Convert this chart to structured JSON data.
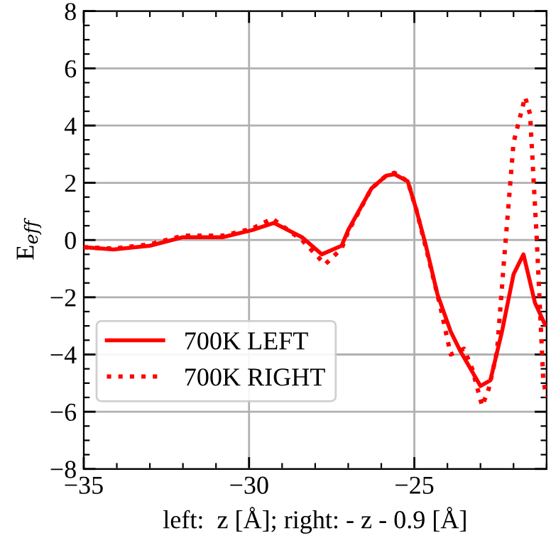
{
  "chart_data": {
    "type": "line",
    "xlabel": "left:  z [Å]; right: - z - 0.9 [Å]",
    "ylabel": "E$_{eff}$",
    "xlim": [
      -35,
      -21
    ],
    "xticks": [
      -35,
      -30,
      -25
    ],
    "ylim": [
      -8,
      8
    ],
    "yticks": [
      -8,
      -6,
      -4,
      -2,
      0,
      2,
      4,
      6,
      8
    ],
    "grid": true,
    "legend": "bottom left",
    "series": [
      {
        "name": "700K LEFT",
        "color": "#ff0000",
        "line_style": "solid",
        "x": [
          -35.0,
          -34.1,
          -33.0,
          -32.0,
          -30.8,
          -29.9,
          -29.25,
          -28.4,
          -27.8,
          -27.2,
          -27.0,
          -26.3,
          -25.85,
          -25.6,
          -25.2,
          -24.95,
          -24.65,
          -24.3,
          -23.9,
          -23.6,
          -23.0,
          -22.7,
          -22.35,
          -22.0,
          -21.7,
          -21.35,
          -21.05
        ],
        "values": [
          -0.25,
          -0.33,
          -0.2,
          0.1,
          0.1,
          0.35,
          0.6,
          0.1,
          -0.5,
          -0.2,
          0.35,
          1.8,
          2.25,
          2.3,
          2.05,
          1.1,
          -0.2,
          -1.9,
          -3.2,
          -3.9,
          -5.1,
          -4.9,
          -3.2,
          -1.2,
          -0.5,
          -2.2,
          -2.95
        ]
      },
      {
        "name": "700K RIGHT",
        "color": "#ff0000",
        "line_style": "dotted",
        "x": [
          -35.0,
          -34.1,
          -33.0,
          -32.0,
          -30.8,
          -29.9,
          -29.3,
          -28.4,
          -27.7,
          -27.2,
          -27.0,
          -26.3,
          -25.85,
          -25.6,
          -25.2,
          -24.95,
          -24.6,
          -24.2,
          -23.9,
          -23.5,
          -23.25,
          -22.95,
          -22.75,
          -22.5,
          -22.3,
          -22.0,
          -21.65,
          -21.5,
          -21.3,
          -21.1,
          -21.0
        ],
        "values": [
          -0.25,
          -0.3,
          -0.15,
          0.15,
          0.15,
          0.4,
          0.75,
          0.0,
          -0.85,
          -0.3,
          0.3,
          1.8,
          2.25,
          2.35,
          2.05,
          1.1,
          -0.5,
          -2.4,
          -4.0,
          -3.8,
          -4.5,
          -5.8,
          -5.2,
          -3.9,
          -0.9,
          3.4,
          5.0,
          4.4,
          0.1,
          -4.9,
          -5.5
        ]
      }
    ]
  }
}
